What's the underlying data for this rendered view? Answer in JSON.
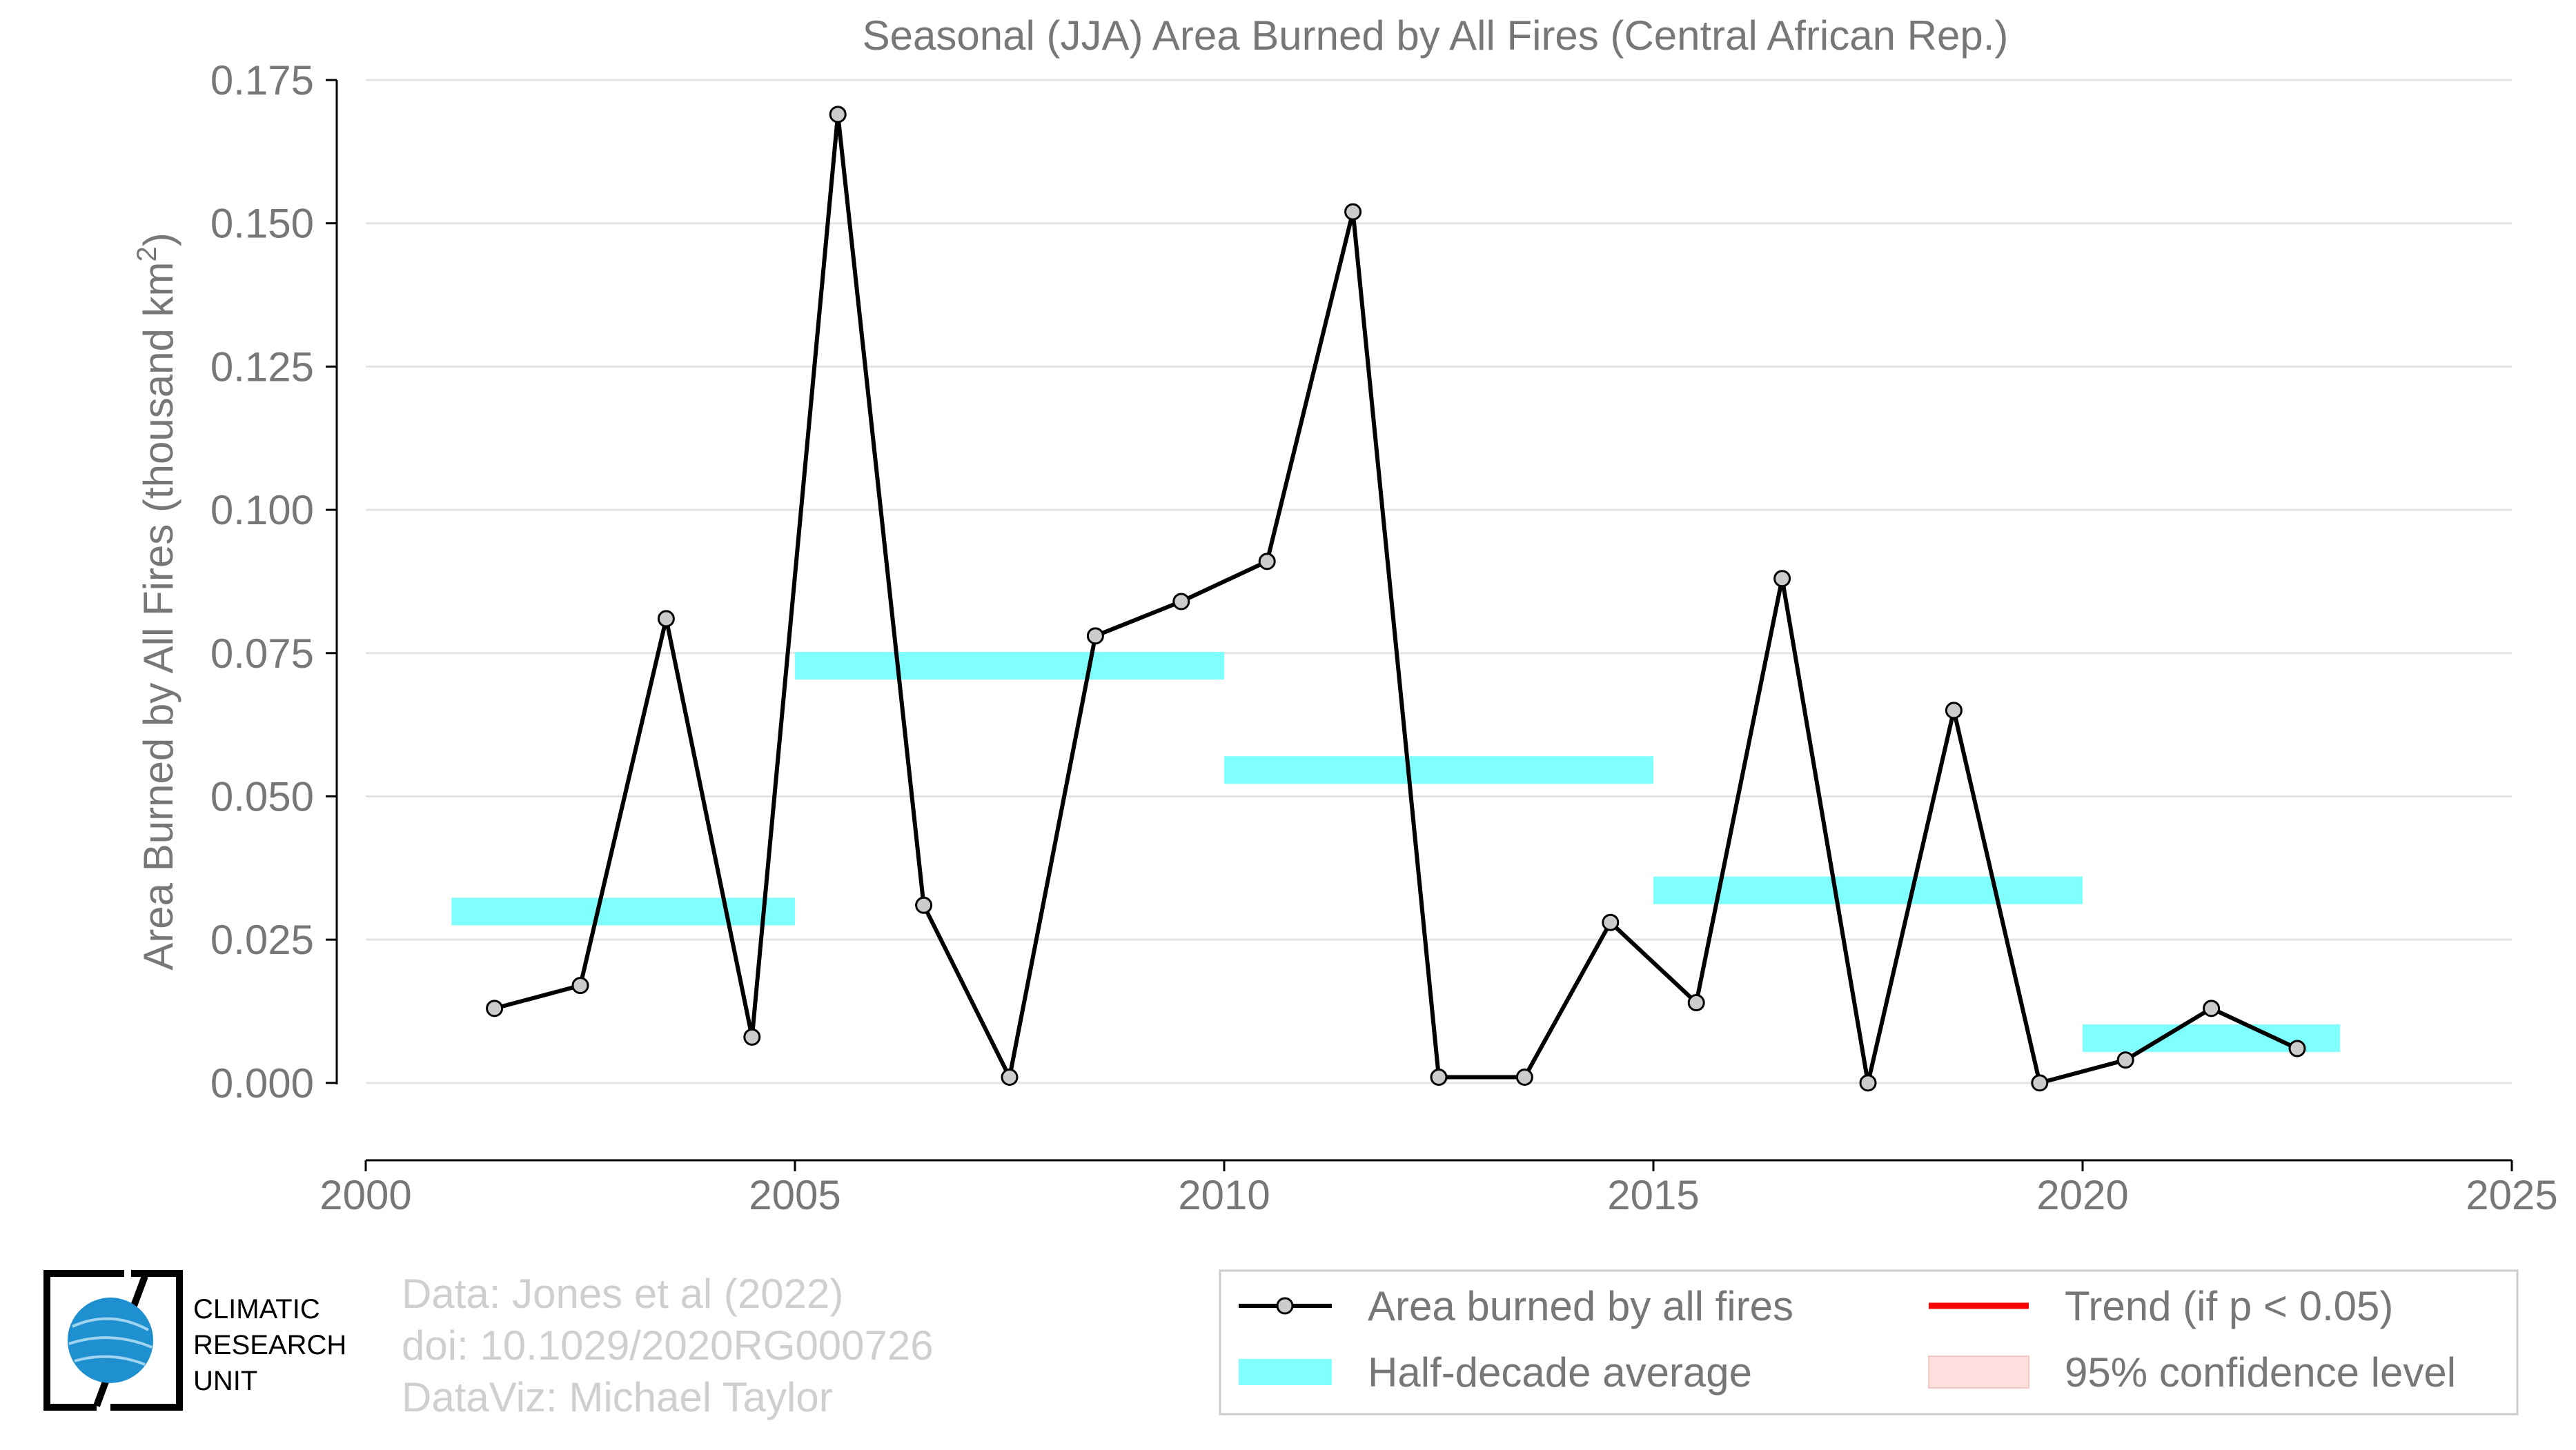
{
  "chart_data": {
    "type": "line",
    "title": "Seasonal (JJA) Area Burned by All Fires (Central African Rep.)",
    "ylabel": "Area Burned by All Fires (thousand km",
    "ylabel_sup": "2",
    "ylabel_end": ")",
    "xlim": [
      2000,
      2025
    ],
    "ylim": [
      -0.0135,
      0.175
    ],
    "xticks": [
      2000,
      2005,
      2010,
      2015,
      2020,
      2025
    ],
    "yticks": [
      0.0,
      0.025,
      0.05,
      0.075,
      0.1,
      0.125,
      0.15,
      0.175
    ],
    "ytick_labels": [
      "0.000",
      "0.025",
      "0.050",
      "0.075",
      "0.100",
      "0.125",
      "0.150",
      "0.175"
    ],
    "grid": true,
    "series": [
      {
        "name": "Area burned by all fires",
        "color": "#000000",
        "marker_fill": "#cccccc",
        "x": [
          2001.5,
          2002.5,
          2003.5,
          2004.5,
          2005.5,
          2006.5,
          2007.5,
          2008.5,
          2009.5,
          2010.5,
          2011.5,
          2012.5,
          2013.5,
          2014.5,
          2015.5,
          2016.5,
          2017.5,
          2018.5,
          2019.5,
          2020.5,
          2021.5,
          2022.5
        ],
        "y": [
          0.013,
          0.017,
          0.081,
          0.008,
          0.169,
          0.031,
          0.001,
          0.078,
          0.084,
          0.091,
          0.152,
          0.001,
          0.001,
          0.028,
          0.014,
          0.088,
          0.0,
          0.065,
          0.0,
          0.004,
          0.013,
          0.006
        ]
      }
    ],
    "half_decade_average": {
      "name": "Half-decade average",
      "color": "#80ffff",
      "segments": [
        {
          "x0": 2001,
          "x1": 2005,
          "y": 0.0299
        },
        {
          "x0": 2005,
          "x1": 2010,
          "y": 0.0728
        },
        {
          "x0": 2010,
          "x1": 2015,
          "y": 0.0546
        },
        {
          "x0": 2015,
          "x1": 2020,
          "y": 0.0336
        },
        {
          "x0": 2020,
          "x1": 2023,
          "y": 0.0078
        }
      ]
    },
    "legend": {
      "position": "bottom-right",
      "items": [
        {
          "label": "Area burned by all fires",
          "kind": "line-marker",
          "color": "#000000"
        },
        {
          "label": "Trend (if p < 0.05)",
          "kind": "line",
          "color": "#ff0000"
        },
        {
          "label": "Half-decade average",
          "kind": "band",
          "color": "#80ffff"
        },
        {
          "label": "95% confidence level",
          "kind": "band",
          "color": "#ffdede"
        }
      ]
    }
  },
  "credits": {
    "line1": "Data: Jones et al (2022)",
    "line2": "doi: 10.1029/2020RG000726",
    "line3": "DataViz: Michael Taylor"
  },
  "logo": {
    "line1": "CLIMATIC",
    "line2": "RESEARCH",
    "line3": "UNIT",
    "globe_color": "#1e90d0"
  }
}
